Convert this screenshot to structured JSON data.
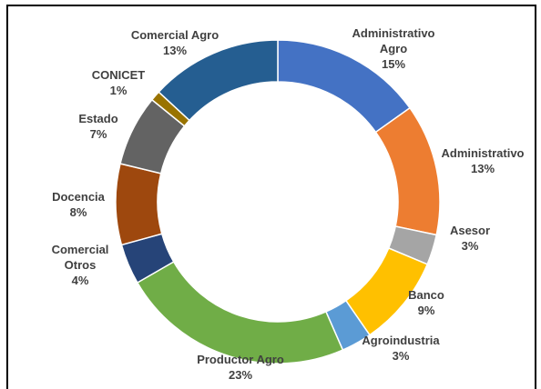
{
  "chart_data": {
    "type": "pie",
    "categories": [
      "Administrativo Agro",
      "Administrativo",
      "Asesor",
      "Banco",
      "Agroindustria",
      "Productor Agro",
      "Comercial Otros",
      "Docencia",
      "Estado",
      "CONICET",
      "Comercial Agro"
    ],
    "values": [
      15,
      13,
      3,
      9,
      3,
      23,
      4,
      8,
      7,
      1,
      13
    ],
    "value_labels": [
      "15%",
      "13%",
      "3%",
      "9%",
      "3%",
      "23%",
      "4%",
      "8%",
      "7%",
      "1%",
      "13%"
    ],
    "colors": [
      "#4472c4",
      "#ed7d31",
      "#a5a5a5",
      "#ffc000",
      "#5b9bd5",
      "#70ad47",
      "#264478",
      "#9e480e",
      "#636363",
      "#997300",
      "#255e91"
    ],
    "donut": true
  }
}
